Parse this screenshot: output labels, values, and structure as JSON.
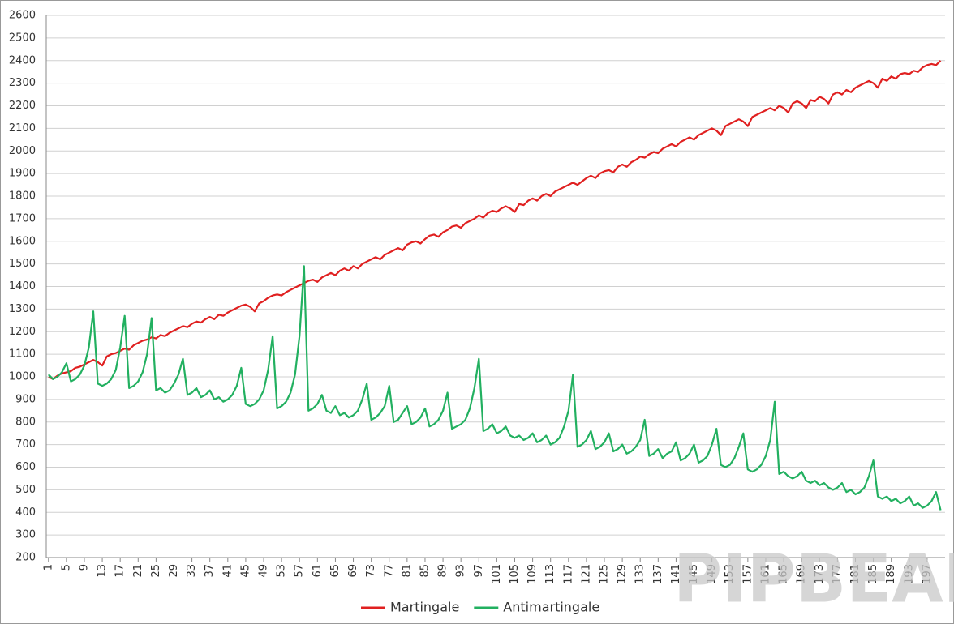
{
  "chart_data": {
    "type": "line",
    "x": [
      1,
      2,
      3,
      4,
      5,
      6,
      7,
      8,
      9,
      10,
      11,
      12,
      13,
      14,
      15,
      16,
      17,
      18,
      19,
      20,
      21,
      22,
      23,
      24,
      25,
      26,
      27,
      28,
      29,
      30,
      31,
      32,
      33,
      34,
      35,
      36,
      37,
      38,
      39,
      40,
      41,
      42,
      43,
      44,
      45,
      46,
      47,
      48,
      49,
      50,
      51,
      52,
      53,
      54,
      55,
      56,
      57,
      58,
      59,
      60,
      61,
      62,
      63,
      64,
      65,
      66,
      67,
      68,
      69,
      70,
      71,
      72,
      73,
      74,
      75,
      76,
      77,
      78,
      79,
      80,
      81,
      82,
      83,
      84,
      85,
      86,
      87,
      88,
      89,
      90,
      91,
      92,
      93,
      94,
      95,
      96,
      97,
      98,
      99,
      100,
      101,
      102,
      103,
      104,
      105,
      106,
      107,
      108,
      109,
      110,
      111,
      112,
      113,
      114,
      115,
      116,
      117,
      118,
      119,
      120,
      121,
      122,
      123,
      124,
      125,
      126,
      127,
      128,
      129,
      130,
      131,
      132,
      133,
      134,
      135,
      136,
      137,
      138,
      139,
      140,
      141,
      142,
      143,
      144,
      145,
      146,
      147,
      148,
      149,
      150,
      151,
      152,
      153,
      154,
      155,
      156,
      157,
      158,
      159,
      160,
      161,
      162,
      163,
      164,
      165,
      166,
      167,
      168,
      169,
      170,
      171,
      172,
      173,
      174,
      175,
      176,
      177,
      178,
      179,
      180,
      181,
      182,
      183,
      184,
      185,
      186,
      187,
      188,
      189,
      190,
      191,
      192,
      193,
      194,
      195,
      196,
      197,
      198,
      199,
      200
    ],
    "xlim": [
      0.5,
      201
    ],
    "xticks": [
      1,
      5,
      9,
      13,
      17,
      21,
      25,
      29,
      33,
      37,
      41,
      45,
      49,
      53,
      57,
      61,
      65,
      69,
      73,
      77,
      81,
      85,
      89,
      93,
      97,
      101,
      105,
      109,
      113,
      117,
      121,
      125,
      129,
      133,
      137,
      141,
      145,
      149,
      153,
      157,
      161,
      165,
      169,
      173,
      177,
      181,
      185,
      189,
      193,
      197
    ],
    "ylim": [
      200,
      2600
    ],
    "yticks": [
      200,
      300,
      400,
      500,
      600,
      700,
      800,
      900,
      1000,
      1100,
      1200,
      1300,
      1400,
      1500,
      1600,
      1700,
      1800,
      1900,
      2000,
      2100,
      2200,
      2300,
      2400,
      2500,
      2600
    ],
    "grid": true,
    "legend": "bottom",
    "watermark": "PIPBEAR",
    "series": [
      {
        "name": "Martingale",
        "color": "#e02020",
        "values": [
          1000,
          990,
          1005,
          1015,
          1020,
          1025,
          1040,
          1045,
          1055,
          1065,
          1075,
          1065,
          1050,
          1090,
          1100,
          1105,
          1115,
          1125,
          1120,
          1140,
          1150,
          1160,
          1165,
          1175,
          1170,
          1185,
          1180,
          1195,
          1205,
          1215,
          1225,
          1220,
          1235,
          1245,
          1240,
          1255,
          1265,
          1255,
          1275,
          1270,
          1285,
          1295,
          1305,
          1315,
          1320,
          1310,
          1290,
          1325,
          1335,
          1350,
          1360,
          1365,
          1360,
          1375,
          1385,
          1395,
          1405,
          1415,
          1425,
          1430,
          1420,
          1440,
          1450,
          1460,
          1450,
          1470,
          1480,
          1470,
          1490,
          1480,
          1500,
          1510,
          1520,
          1530,
          1520,
          1540,
          1550,
          1560,
          1570,
          1560,
          1585,
          1595,
          1600,
          1590,
          1610,
          1625,
          1630,
          1620,
          1640,
          1650,
          1665,
          1670,
          1660,
          1680,
          1690,
          1700,
          1715,
          1705,
          1725,
          1735,
          1730,
          1745,
          1755,
          1745,
          1730,
          1765,
          1760,
          1780,
          1790,
          1780,
          1800,
          1810,
          1800,
          1820,
          1830,
          1840,
          1850,
          1860,
          1850,
          1865,
          1880,
          1890,
          1880,
          1900,
          1910,
          1915,
          1905,
          1930,
          1940,
          1930,
          1950,
          1960,
          1975,
          1970,
          1985,
          1995,
          1990,
          2010,
          2020,
          2030,
          2020,
          2040,
          2050,
          2060,
          2050,
          2070,
          2080,
          2090,
          2100,
          2090,
          2070,
          2110,
          2120,
          2130,
          2140,
          2130,
          2110,
          2150,
          2160,
          2170,
          2180,
          2190,
          2180,
          2200,
          2190,
          2170,
          2210,
          2220,
          2210,
          2190,
          2225,
          2220,
          2240,
          2230,
          2210,
          2250,
          2260,
          2250,
          2270,
          2260,
          2280,
          2290,
          2300,
          2310,
          2300,
          2280,
          2320,
          2310,
          2330,
          2320,
          2340,
          2345,
          2340,
          2355,
          2350,
          2370,
          2380,
          2385,
          2380,
          2400
        ]
      },
      {
        "name": "Antimartingale",
        "color": "#22b060",
        "values": [
          1010,
          990,
          1000,
          1020,
          1060,
          980,
          990,
          1010,
          1050,
          1130,
          1290,
          970,
          960,
          970,
          990,
          1030,
          1130,
          1270,
          950,
          960,
          980,
          1020,
          1100,
          1260,
          940,
          950,
          930,
          940,
          970,
          1010,
          1080,
          920,
          930,
          950,
          910,
          920,
          940,
          900,
          910,
          890,
          900,
          920,
          960,
          1040,
          880,
          870,
          880,
          900,
          940,
          1030,
          1180,
          860,
          870,
          890,
          930,
          1010,
          1180,
          1490,
          850,
          860,
          880,
          920,
          850,
          840,
          870,
          830,
          840,
          820,
          830,
          850,
          900,
          970,
          810,
          820,
          840,
          870,
          960,
          800,
          810,
          840,
          870,
          790,
          800,
          820,
          860,
          780,
          790,
          810,
          850,
          930,
          770,
          780,
          790,
          810,
          860,
          950,
          1080,
          760,
          770,
          790,
          750,
          760,
          780,
          740,
          730,
          740,
          720,
          730,
          750,
          710,
          720,
          740,
          700,
          710,
          730,
          780,
          850,
          1010,
          690,
          700,
          720,
          760,
          680,
          690,
          710,
          750,
          670,
          680,
          700,
          660,
          670,
          690,
          720,
          810,
          650,
          660,
          680,
          640,
          660,
          670,
          710,
          630,
          640,
          660,
          700,
          620,
          630,
          650,
          700,
          770,
          610,
          600,
          610,
          640,
          690,
          750,
          590,
          580,
          590,
          610,
          650,
          720,
          890,
          570,
          580,
          560,
          550,
          560,
          580,
          540,
          530,
          540,
          520,
          530,
          510,
          500,
          510,
          530,
          490,
          500,
          480,
          490,
          510,
          560,
          630,
          470,
          460,
          470,
          450,
          460,
          440,
          450,
          470,
          430,
          440,
          420,
          430,
          450,
          490,
          410
        ]
      }
    ]
  }
}
